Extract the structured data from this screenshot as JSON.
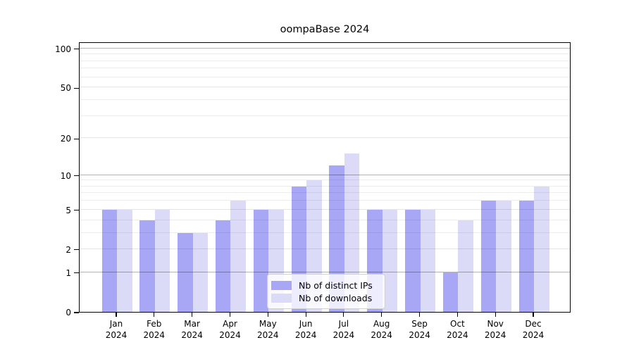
{
  "title": "oompaBase 2024",
  "chart_data": {
    "type": "bar",
    "title": "oompaBase 2024",
    "categories": [
      "Jan",
      "Feb",
      "Mar",
      "Apr",
      "May",
      "Jun",
      "Jul",
      "Aug",
      "Sep",
      "Oct",
      "Nov",
      "Dec"
    ],
    "category_year": "2024",
    "series": [
      {
        "name": "Nb of distinct IPs",
        "color": "#a7a7f5",
        "values": [
          5,
          4,
          3,
          4,
          5,
          8,
          12,
          5,
          5,
          1,
          6,
          6
        ]
      },
      {
        "name": "Nb of downloads",
        "color": "#dbdbf8",
        "values": [
          5,
          5,
          3,
          6,
          5,
          9,
          15,
          5,
          5,
          4,
          6,
          8
        ]
      }
    ],
    "xlabel": "",
    "ylabel": "",
    "yscale": "log1p",
    "ymin": 0,
    "ymax": 113,
    "yticks": [
      0,
      1,
      2,
      5,
      10,
      20,
      50,
      100
    ],
    "ytick_labels": [
      "0",
      "1",
      "2",
      "5",
      "10",
      "20",
      "50",
      "100"
    ],
    "minor_yticks": [
      3,
      4,
      6,
      7,
      8,
      9,
      30,
      40,
      60,
      70,
      80,
      90
    ],
    "mid_yticks": [
      2,
      5,
      20,
      50
    ],
    "major_grid_yticks": [
      1,
      10,
      100
    ],
    "grid": true,
    "legend_position": "bottom-center"
  },
  "legend": {
    "items": [
      {
        "label": "Nb of distinct IPs"
      },
      {
        "label": "Nb of downloads"
      }
    ]
  }
}
